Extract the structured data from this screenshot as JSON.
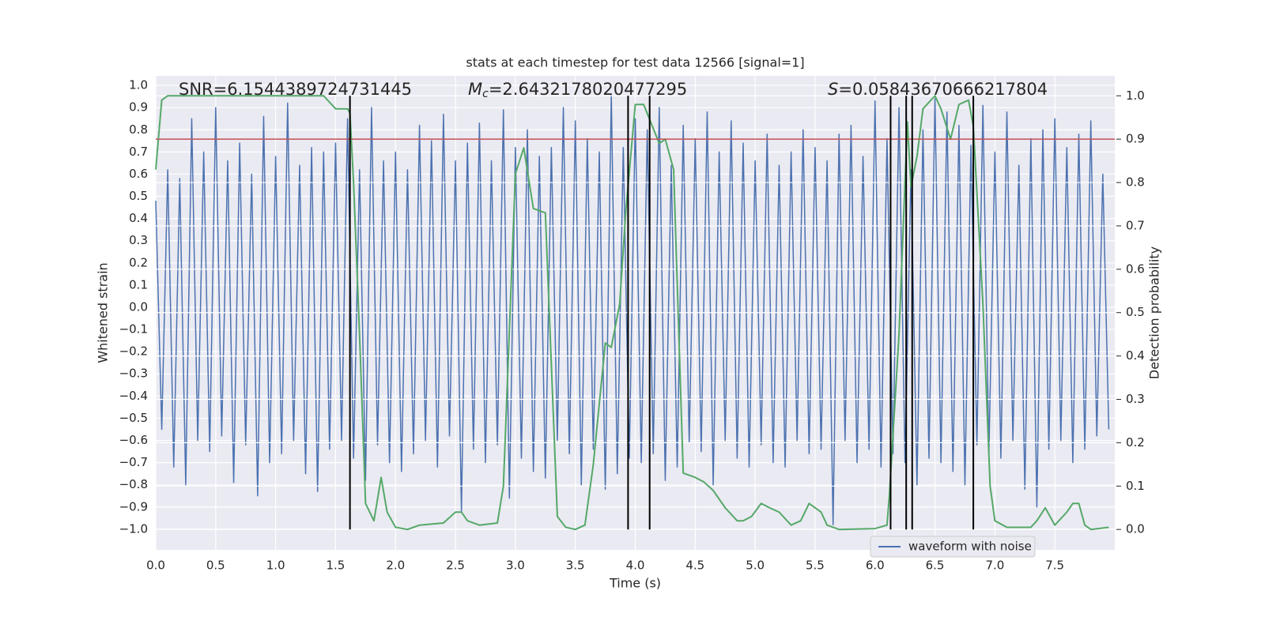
{
  "chart_data": {
    "type": "line",
    "title": "stats at each timestep for test data 12566 [signal=1]",
    "xlabel": "Time (s)",
    "ylabel": "Whitened strain",
    "y2label": "Detection probability",
    "annotations": [
      {
        "text": "SNR=6.1544389724731445"
      },
      {
        "symbol": "M",
        "subscript": "c",
        "text": "=2.6432178020477295"
      },
      {
        "symbol": "S",
        "text": "=0.05843670666217804"
      }
    ],
    "xlim": [
      0,
      8
    ],
    "xticks": [
      {
        "value": 0,
        "label": "0.0"
      },
      0.5,
      {
        "value": 1,
        "label": "1.0"
      },
      1.5,
      {
        "value": 2,
        "label": "2.0"
      },
      2.5,
      {
        "value": 3,
        "label": "3.0"
      },
      3.5,
      {
        "value": 4,
        "label": "4.0"
      },
      4.5,
      {
        "value": 5,
        "label": "5.0"
      },
      5.5,
      {
        "value": 6,
        "label": "6.0"
      },
      6.5,
      {
        "value": 7,
        "label": "7.0"
      },
      7.5
    ],
    "ylim": [
      -1.093,
      1.043
    ],
    "yticks": [
      {
        "value": -1,
        "label": "−1.0"
      },
      {
        "value": -0.9,
        "label": "−0.9"
      },
      {
        "value": -0.8,
        "label": "−0.8"
      },
      {
        "value": -0.7,
        "label": "−0.7"
      },
      {
        "value": -0.6,
        "label": "−0.6"
      },
      {
        "value": -0.5,
        "label": "−0.5"
      },
      {
        "value": -0.4,
        "label": "−0.4"
      },
      {
        "value": -0.3,
        "label": "−0.3"
      },
      {
        "value": -0.2,
        "label": "−0.2"
      },
      {
        "value": -0.1,
        "label": "−0.1"
      },
      {
        "value": 0,
        "label": "0.0"
      },
      0.1,
      0.2,
      0.3,
      0.4,
      0.5,
      0.6,
      0.7,
      0.8,
      0.9,
      {
        "value": 1,
        "label": "1.0"
      }
    ],
    "y2lim": [
      -0.047,
      1.046
    ],
    "y2ticks": [
      {
        "value": 0,
        "label": "0.0"
      },
      0.1,
      0.2,
      0.3,
      0.4,
      0.5,
      0.6,
      0.7,
      0.8,
      0.9,
      {
        "value": 1,
        "label": "1.0"
      }
    ],
    "grid": true,
    "legend": "lower right",
    "threshold": 0.9,
    "threshold_color": "#c44e52",
    "vlines": [
      1.62,
      3.94,
      4.12,
      6.13,
      6.26,
      6.31,
      6.82
    ],
    "vline_color": "#000000",
    "series": [
      {
        "name": "waveform with noise",
        "color": "#4c72b0",
        "x": [
          0,
          0.05,
          0.1,
          0.15,
          0.2,
          0.25,
          0.3,
          0.35,
          0.4,
          0.45,
          0.5,
          0.55,
          0.6,
          0.65,
          0.7,
          0.75,
          0.8,
          0.85,
          0.9,
          0.95,
          1,
          1.05,
          1.1,
          1.15,
          1.2,
          1.25,
          1.3,
          1.35,
          1.4,
          1.45,
          1.5,
          1.55,
          1.6,
          1.65,
          1.7,
          1.75,
          1.8,
          1.85,
          1.9,
          1.95,
          2,
          2.05,
          2.1,
          2.15,
          2.2,
          2.25,
          2.3,
          2.35,
          2.4,
          2.45,
          2.5,
          2.55,
          2.6,
          2.65,
          2.7,
          2.75,
          2.8,
          2.85,
          2.9,
          2.95,
          3,
          3.05,
          3.1,
          3.15,
          3.2,
          3.25,
          3.3,
          3.35,
          3.4,
          3.45,
          3.5,
          3.55,
          3.6,
          3.65,
          3.7,
          3.75,
          3.8,
          3.85,
          3.9,
          3.95,
          4,
          4.05,
          4.1,
          4.15,
          4.2,
          4.25,
          4.3,
          4.35,
          4.4,
          4.45,
          4.5,
          4.55,
          4.6,
          4.65,
          4.7,
          4.75,
          4.8,
          4.85,
          4.9,
          4.95,
          5,
          5.05,
          5.1,
          5.15,
          5.2,
          5.25,
          5.3,
          5.35,
          5.4,
          5.45,
          5.5,
          5.55,
          5.6,
          5.65,
          5.7,
          5.75,
          5.8,
          5.85,
          5.9,
          5.95,
          6,
          6.05,
          6.1,
          6.15,
          6.2,
          6.25,
          6.3,
          6.35,
          6.4,
          6.45,
          6.5,
          6.55,
          6.6,
          6.65,
          6.7,
          6.75,
          6.8,
          6.85,
          6.9,
          6.95,
          7,
          7.05,
          7.1,
          7.15,
          7.2,
          7.25,
          7.3,
          7.35,
          7.4,
          7.45,
          7.5,
          7.55,
          7.6,
          7.65,
          7.7,
          7.75,
          7.8,
          7.85,
          7.9,
          7.95
        ],
        "values": [
          0.48,
          -0.55,
          0.62,
          -0.72,
          0.58,
          -0.8,
          0.85,
          -0.6,
          0.7,
          -0.65,
          0.9,
          -0.58,
          0.66,
          -0.79,
          0.74,
          -0.62,
          0.6,
          -0.85,
          0.86,
          -0.7,
          0.68,
          -0.66,
          0.92,
          -0.6,
          0.64,
          -0.75,
          0.72,
          -0.83,
          0.7,
          -0.64,
          0.74,
          -0.6,
          0.85,
          -0.68,
          0.62,
          -0.78,
          0.9,
          -0.62,
          0.66,
          -0.7,
          0.7,
          -0.74,
          0.62,
          -0.66,
          0.82,
          -0.6,
          0.75,
          -0.72,
          0.87,
          -0.58,
          0.66,
          -0.92,
          0.74,
          -0.64,
          0.83,
          -0.7,
          0.66,
          -0.62,
          0.89,
          -0.86,
          0.72,
          -0.68,
          0.8,
          -0.74,
          0.68,
          -0.77,
          0.72,
          -0.6,
          0.9,
          -0.66,
          0.84,
          -0.8,
          0.76,
          -0.64,
          0.7,
          -0.82,
          0.96,
          -0.75,
          0.72,
          -0.68,
          0.85,
          -0.7,
          0.8,
          -0.66,
          0.9,
          -0.78,
          0.64,
          -0.72,
          0.82,
          -0.61,
          0.76,
          -0.65,
          0.88,
          -0.8,
          0.7,
          -0.6,
          0.84,
          -0.68,
          0.74,
          -0.72,
          0.66,
          -0.62,
          0.78,
          -0.7,
          0.64,
          -0.72,
          0.7,
          -0.6,
          0.8,
          -0.66,
          0.72,
          -0.64,
          0.66,
          -0.98,
          0.78,
          -0.6,
          0.82,
          -0.7,
          0.68,
          -0.64,
          0.93,
          -0.72,
          0.76,
          -0.66,
          0.9,
          -0.7,
          0.62,
          -0.8,
          0.8,
          -0.68,
          0.94,
          -0.7,
          0.88,
          -0.74,
          0.82,
          -0.8,
          0.73,
          -0.62,
          0.91,
          -0.66,
          0.7,
          -0.68,
          0.88,
          -0.6,
          0.64,
          -0.82,
          0.76,
          -0.9,
          0.8,
          -0.64,
          0.85,
          -0.6,
          0.72,
          -0.7,
          0.78,
          -0.64,
          0.84,
          -0.58,
          0.6,
          -0.55
        ]
      },
      {
        "color": "#55a868",
        "axis": "y2",
        "x": [
          0,
          0.05,
          0.1,
          0.2,
          1.4,
          1.5,
          1.6,
          1.62,
          1.65,
          1.7,
          1.75,
          1.82,
          1.88,
          1.93,
          2,
          2.1,
          2.2,
          2.4,
          2.5,
          2.55,
          2.6,
          2.7,
          2.85,
          2.9,
          3,
          3.07,
          3.15,
          3.25,
          3.35,
          3.42,
          3.5,
          3.58,
          3.65,
          3.75,
          3.8,
          3.87,
          3.92,
          4,
          4.07,
          4.2,
          4.25,
          4.32,
          4.4,
          4.5,
          4.57,
          4.65,
          4.75,
          4.85,
          4.9,
          4.97,
          5.05,
          5.12,
          5.2,
          5.3,
          5.38,
          5.45,
          5.55,
          5.6,
          5.7,
          6,
          6.1,
          6.12,
          6.2,
          6.27,
          6.3,
          6.35,
          6.4,
          6.5,
          6.55,
          6.63,
          6.7,
          6.78,
          6.82,
          6.9,
          6.96,
          7,
          7.1,
          7.3,
          7.35,
          7.42,
          7.5,
          7.6,
          7.65,
          7.7,
          7.75,
          7.8,
          7.95
        ],
        "values": [
          0.83,
          0.99,
          1,
          1,
          1,
          0.97,
          0.97,
          0.96,
          0.8,
          0.45,
          0.06,
          0.02,
          0.12,
          0.04,
          0.005,
          0,
          0.01,
          0.015,
          0.04,
          0.04,
          0.02,
          0.01,
          0.015,
          0.1,
          0.82,
          0.88,
          0.74,
          0.73,
          0.03,
          0.005,
          0,
          0.01,
          0.15,
          0.43,
          0.42,
          0.52,
          0.73,
          0.98,
          0.98,
          0.89,
          0.9,
          0.83,
          0.13,
          0.12,
          0.11,
          0.09,
          0.05,
          0.02,
          0.02,
          0.03,
          0.06,
          0.05,
          0.04,
          0.01,
          0.02,
          0.06,
          0.04,
          0.01,
          0,
          0.002,
          0.01,
          0.08,
          0.45,
          0.94,
          0.79,
          0.86,
          0.97,
          1,
          0.97,
          0.9,
          0.98,
          0.99,
          0.93,
          0.52,
          0.1,
          0.02,
          0.005,
          0.005,
          0.02,
          0.05,
          0.01,
          0.04,
          0.06,
          0.06,
          0.01,
          0,
          0.005
        ]
      }
    ]
  }
}
